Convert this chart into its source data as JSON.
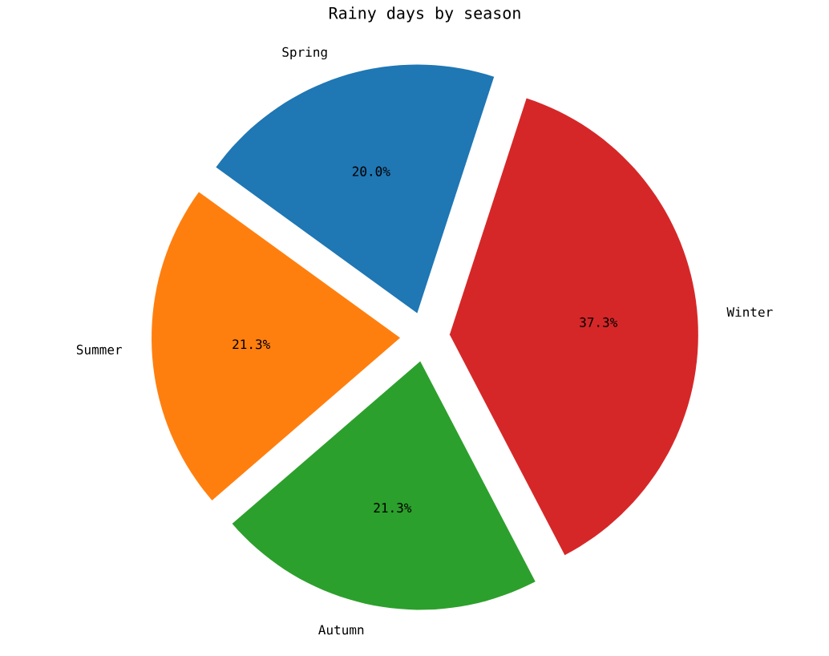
{
  "chart_data": {
    "type": "pie",
    "title": "Rainy days by season",
    "categories": [
      "Spring",
      "Summer",
      "Autumn",
      "Winter"
    ],
    "values": [
      20.0,
      21.3,
      21.3,
      37.3
    ],
    "value_labels": [
      "20.0%",
      "21.3%",
      "21.3%",
      "37.3%"
    ],
    "colors": [
      "#1f77b4",
      "#ff7f0e",
      "#2ca02c",
      "#d62728"
    ]
  }
}
